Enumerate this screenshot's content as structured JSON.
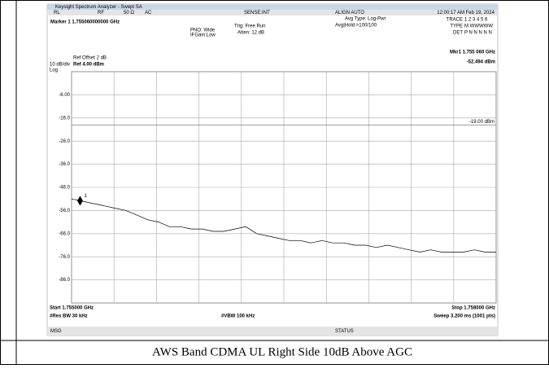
{
  "window_title": "Keysight Spectrum Analyzer - Swept SA",
  "status_bar": {
    "rl": "RL",
    "rf": "RF",
    "impedance": "50 Ω",
    "coupling": "AC",
    "sense": "SENSE:INT",
    "align": "ALIGN AUTO",
    "datetime": "12:00:17 AM Feb 19, 2024"
  },
  "settings": {
    "marker": "Marker 1 1.755060000000 GHz",
    "pno": "PNO: Wide",
    "ifgain": "IFGain:Low",
    "trig": "Trig: Free Run",
    "atten": "Atten: 12 dB",
    "avg_type": "Avg Type: Log-Pwr",
    "avg_hold": "Avg|Hold:>100/100",
    "trace_label": "TRACE",
    "trace_nums": "1 2 3 4 5 6",
    "type_label": "TYPE",
    "type_vals": "M WWWWW",
    "det_label": "DET",
    "det_vals": "P N N N N N"
  },
  "plot": {
    "ref_offset": "Ref Offset 2 dB",
    "scale": "10 dB/div",
    "ref_level": "Ref 4.00 dBm",
    "log": "Log",
    "mkr_freq": "Mkr1 1.755 060 GHz",
    "mkr_level": "-52.494 dBm",
    "ylim": [
      -96,
      4
    ],
    "xlim": [
      1.755,
      1.758
    ],
    "yticks": [
      {
        "value": -6,
        "label": "-6.00"
      },
      {
        "value": -16,
        "label": "-16.0"
      },
      {
        "value": -26,
        "label": "-26.0"
      },
      {
        "value": -36,
        "label": "-36.0"
      },
      {
        "value": -46,
        "label": "-46.0"
      },
      {
        "value": -56,
        "label": "-56.0"
      },
      {
        "value": -66,
        "label": "-66.0"
      },
      {
        "value": -76,
        "label": "-76.0"
      },
      {
        "value": -86,
        "label": "-86.0"
      }
    ],
    "display_line": {
      "value": -19,
      "label": "-19.00 dBm"
    },
    "marker": {
      "x": 1.75506,
      "y": -52.494,
      "number": "1"
    },
    "trace": [
      -51,
      -52,
      -53,
      -54,
      -55,
      -56,
      -58,
      -60,
      -61,
      -63,
      -63,
      -64,
      -64,
      -65,
      -65,
      -64,
      -63,
      -66,
      -67,
      -68,
      -69,
      -69,
      -70,
      -69,
      -70,
      -70,
      -71,
      -71,
      -72,
      -71,
      -72,
      -73,
      -74,
      -73,
      -74,
      -74,
      -74,
      -73,
      -74,
      -74
    ],
    "start": "Start 1.755000 GHz",
    "rbw": "#Res BW 30 kHz",
    "vbw": "#VBW 100 kHz",
    "stop": "Stop 1.758000 GHz",
    "sweep": "Sweep  3.200 ms (1001 pts)"
  },
  "footer": {
    "msg": "MSG",
    "status": "STATUS"
  },
  "caption": "AWS Band CDMA UL Right Side 10dB Above AGC"
}
